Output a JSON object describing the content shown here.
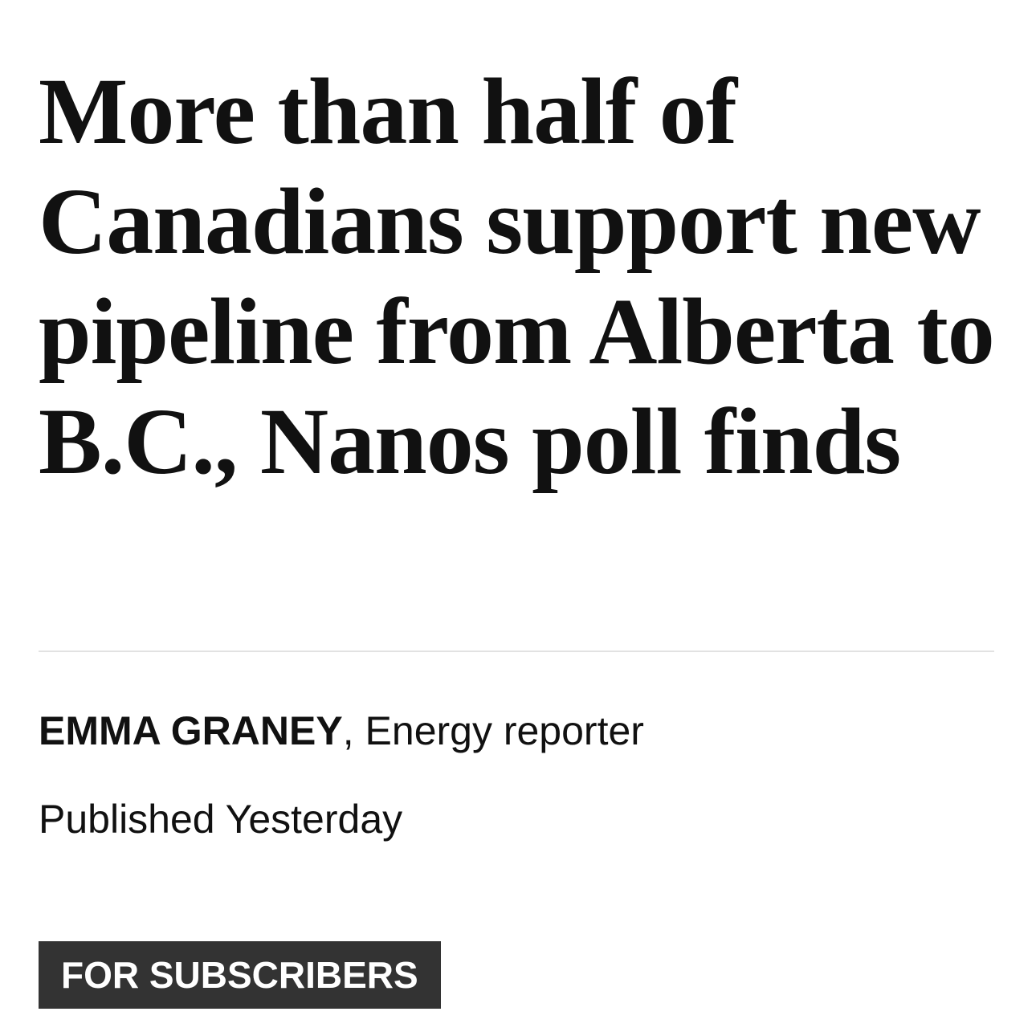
{
  "article": {
    "headline": "More than half of Canadians support new pipeline from Alberta to B.C., Nanos poll finds",
    "byline": {
      "author": "EMMA GRANEY",
      "separator": ",",
      "role": "Energy reporter"
    },
    "published": "Published Yesterday",
    "badge": "FOR SUBSCRIBERS"
  }
}
